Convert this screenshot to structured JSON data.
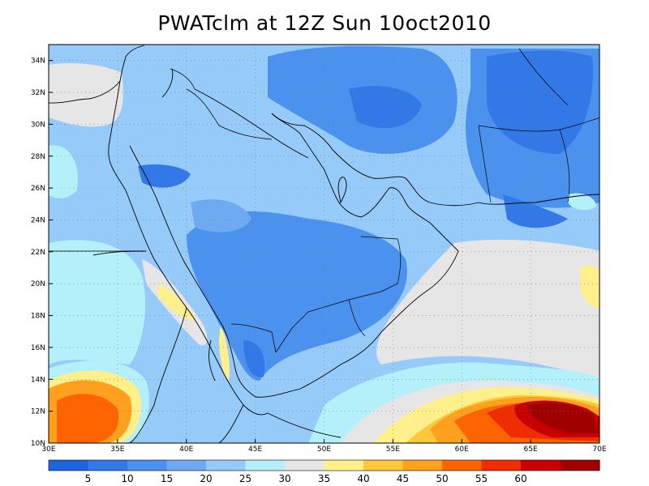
{
  "title": "PWATclm at 12Z Sun 10oct2010",
  "map": {
    "lon_range": [
      30,
      70
    ],
    "lat_range": [
      10,
      35
    ],
    "lon_ticks": [
      {
        "value": 30,
        "label": "30E"
      },
      {
        "value": 35,
        "label": "35E"
      },
      {
        "value": 40,
        "label": "40E"
      },
      {
        "value": 45,
        "label": "45E"
      },
      {
        "value": 50,
        "label": "50E"
      },
      {
        "value": 55,
        "label": "55E"
      },
      {
        "value": 60,
        "label": "60E"
      },
      {
        "value": 65,
        "label": "65E"
      },
      {
        "value": 70,
        "label": "70E"
      }
    ],
    "lat_ticks": [
      {
        "value": 10,
        "label": "10N"
      },
      {
        "value": 12,
        "label": "12N"
      },
      {
        "value": 14,
        "label": "14N"
      },
      {
        "value": 16,
        "label": "16N"
      },
      {
        "value": 18,
        "label": "18N"
      },
      {
        "value": 20,
        "label": "20N"
      },
      {
        "value": 22,
        "label": "22N"
      },
      {
        "value": 24,
        "label": "24N"
      },
      {
        "value": 26,
        "label": "26N"
      },
      {
        "value": 28,
        "label": "28N"
      },
      {
        "value": 30,
        "label": "30N"
      },
      {
        "value": 32,
        "label": "32N"
      },
      {
        "value": 34,
        "label": "34N"
      }
    ]
  },
  "colorbar": {
    "colors": [
      "#1e64dc",
      "#3278e6",
      "#4b92ee",
      "#6eaaf2",
      "#96caf8",
      "#b4f0fa",
      "#e6e6e6",
      "#fff08c",
      "#ffc83c",
      "#ffa01e",
      "#ff6400",
      "#ee2d00",
      "#c80000",
      "#a00000"
    ],
    "labels": [
      "5",
      "10",
      "15",
      "20",
      "25",
      "30",
      "35",
      "40",
      "45",
      "50",
      "55",
      "60"
    ]
  },
  "chart_data": {
    "type": "heatmap",
    "title": "PWATclm at 12Z Sun 10oct2010",
    "x_range": [
      30,
      70
    ],
    "y_range": [
      10,
      35
    ],
    "levels": [
      5,
      10,
      15,
      20,
      25,
      30,
      35,
      40,
      45,
      50,
      55,
      60
    ]
  }
}
